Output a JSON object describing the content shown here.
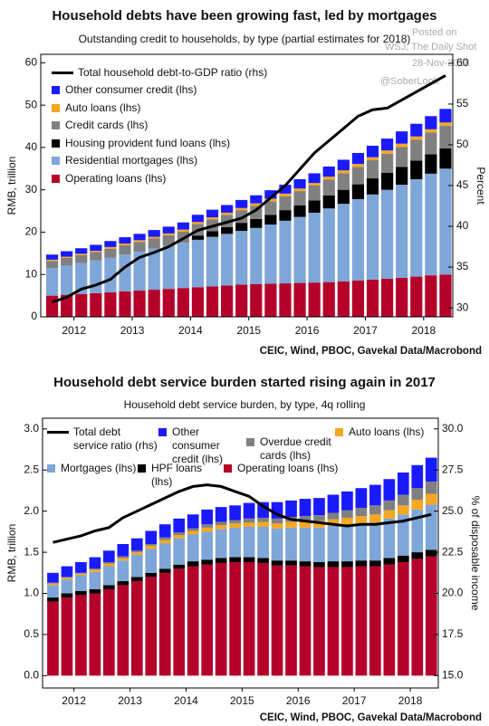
{
  "chart_data": [
    {
      "type": "bar",
      "stacked": true,
      "title": "Household debts have been growing fast, led by mortgages",
      "subtitle": "Outstanding credit to households, by type (partial estimates for 2018)",
      "ylabel": "RMB, trillion",
      "y2label": "Percent",
      "source": "CEIC, Wind, PBOC, Gavekal Data/Macrobond",
      "annotations": [
        "Posted on",
        "WSJ, The Daily Shot",
        "28-Nov-2018",
        "@SoberLook"
      ],
      "x": [
        2012.125,
        2012.375,
        2012.625,
        2012.875,
        2013.125,
        2013.375,
        2013.625,
        2013.875,
        2014.125,
        2014.375,
        2014.625,
        2014.875,
        2015.125,
        2015.375,
        2015.625,
        2015.875,
        2016.125,
        2016.375,
        2016.625,
        2016.875,
        2017.125,
        2017.375,
        2017.625,
        2017.875,
        2018.125,
        2018.375,
        2018.625,
        2018.875
      ],
      "xlim": [
        2011.93,
        2019.0
      ],
      "xticks": [
        {
          "value": 2012.5,
          "label": "2012"
        },
        {
          "value": 2013.5,
          "label": "2013"
        },
        {
          "value": 2014.5,
          "label": "2014"
        },
        {
          "value": 2015.5,
          "label": "2015"
        },
        {
          "value": 2016.5,
          "label": "2016"
        },
        {
          "value": 2017.5,
          "label": "2017"
        },
        {
          "value": 2018.5,
          "label": "2018"
        }
      ],
      "ylim": [
        0,
        62
      ],
      "yticks": [
        0,
        10,
        20,
        30,
        40,
        50,
        60
      ],
      "y2lim": [
        28.9,
        61.1
      ],
      "y2ticks": [
        30,
        35,
        40,
        45,
        50,
        55,
        60
      ],
      "series": [
        {
          "name": "Operating loans (lhs)",
          "color": "#b5002a",
          "values": [
            5.0,
            5.2,
            5.4,
            5.6,
            5.8,
            6.0,
            6.2,
            6.4,
            6.6,
            6.8,
            7.0,
            7.2,
            7.4,
            7.6,
            7.7,
            7.8,
            7.9,
            8.0,
            8.1,
            8.2,
            8.4,
            8.6,
            8.8,
            9.0,
            9.2,
            9.5,
            9.8,
            10.0
          ]
        },
        {
          "name": "Residential mortgages (lhs)",
          "color": "#7ea6d8",
          "values": [
            6.5,
            6.9,
            7.3,
            7.7,
            8.2,
            8.7,
            9.2,
            9.7,
            10.2,
            10.7,
            11.2,
            11.7,
            12.2,
            12.7,
            13.3,
            14.0,
            14.8,
            15.6,
            16.5,
            17.4,
            18.3,
            19.2,
            20.1,
            21.0,
            22.0,
            23.0,
            24.0,
            25.0
          ]
        },
        {
          "name": "Housing provident fund loans (lhs)",
          "color": "#000000",
          "values": [
            0,
            0,
            0,
            0,
            0,
            0,
            0,
            0,
            0,
            0,
            1.0,
            1.3,
            1.6,
            1.9,
            2.1,
            2.3,
            2.5,
            2.7,
            2.9,
            3.1,
            3.3,
            3.5,
            3.8,
            4.0,
            4.2,
            4.4,
            4.6,
            4.8
          ]
        },
        {
          "name": "Credit cards (lhs)",
          "color": "#808080",
          "values": [
            1.7,
            1.8,
            1.9,
            2.0,
            2.1,
            2.2,
            2.3,
            2.4,
            2.5,
            2.6,
            2.7,
            2.8,
            2.9,
            3.0,
            3.1,
            3.2,
            3.3,
            3.4,
            3.5,
            3.7,
            3.9,
            4.1,
            4.3,
            4.5,
            4.7,
            4.9,
            5.1,
            5.3
          ]
        },
        {
          "name": "Auto loans (lhs)",
          "color": "#f5a623",
          "values": [
            0.3,
            0.3,
            0.3,
            0.3,
            0.4,
            0.4,
            0.4,
            0.4,
            0.4,
            0.5,
            0.5,
            0.5,
            0.5,
            0.5,
            0.6,
            0.6,
            0.6,
            0.6,
            0.6,
            0.7,
            0.7,
            0.7,
            0.7,
            0.8,
            0.8,
            0.8,
            0.8,
            0.8
          ]
        },
        {
          "name": "Other consumer credit (lhs)",
          "color": "#1a1aff",
          "values": [
            1.2,
            1.3,
            1.3,
            1.4,
            1.4,
            1.5,
            1.5,
            1.6,
            1.6,
            1.7,
            1.7,
            1.8,
            1.8,
            1.9,
            1.9,
            2.0,
            2.1,
            2.2,
            2.3,
            2.4,
            2.5,
            2.6,
            2.7,
            2.8,
            2.9,
            3.0,
            3.1,
            3.2
          ]
        },
        {
          "name": "Total household debt-to-GDP ratio (rhs)",
          "color": "#000000",
          "type": "line",
          "axis": "y2",
          "values": [
            30.7,
            31.3,
            32.3,
            32.8,
            33.5,
            35.0,
            36.2,
            36.8,
            37.5,
            38.5,
            39.5,
            40.0,
            40.5,
            41.0,
            42.0,
            43.5,
            45.0,
            47.0,
            49.0,
            50.5,
            52.0,
            53.5,
            54.3,
            54.5,
            55.5,
            56.5,
            57.5,
            58.5
          ]
        }
      ]
    },
    {
      "type": "bar",
      "stacked": true,
      "title": "Household debt service burden started rising again in 2017",
      "subtitle": "Household debt service burden, by type, 4q rolling",
      "ylabel": "RMB, trillion",
      "y2label": "% of disposable income",
      "source": "CEIC, Wind, PBOC, Gavekal Data/Macrobond",
      "x": [
        2012.125,
        2012.375,
        2012.625,
        2012.875,
        2013.125,
        2013.375,
        2013.625,
        2013.875,
        2014.125,
        2014.375,
        2014.625,
        2014.875,
        2015.125,
        2015.375,
        2015.625,
        2015.875,
        2016.125,
        2016.375,
        2016.625,
        2016.875,
        2017.125,
        2017.375,
        2017.625,
        2017.875,
        2018.125,
        2018.375,
        2018.625,
        2018.875
      ],
      "xlim": [
        2011.94,
        2019.0
      ],
      "xticks": [
        {
          "value": 2012.5,
          "label": "2012"
        },
        {
          "value": 2013.5,
          "label": "2013"
        },
        {
          "value": 2014.5,
          "label": "2014"
        },
        {
          "value": 2015.5,
          "label": "2015"
        },
        {
          "value": 2016.5,
          "label": "2016"
        },
        {
          "value": 2017.5,
          "label": "2017"
        },
        {
          "value": 2018.5,
          "label": "2018"
        }
      ],
      "ylim": [
        -0.15,
        3.13
      ],
      "yticks": [
        {
          "value": 0,
          "label": "0.0"
        },
        0.5,
        {
          "value": 1,
          "label": "1.0"
        },
        1.5,
        {
          "value": 2,
          "label": "2.0"
        },
        2.5,
        {
          "value": 3,
          "label": "3.0"
        }
      ],
      "y2lim": [
        14.25,
        30.65
      ],
      "y2ticks": [
        {
          "value": 15,
          "label": "15.0"
        },
        17.5,
        {
          "value": 20,
          "label": "20.0"
        },
        22.5,
        {
          "value": 25,
          "label": "25.0"
        },
        27.5,
        {
          "value": 30,
          "label": "30.0"
        }
      ],
      "series": [
        {
          "name": "Operating loans (lhs)",
          "color": "#b5002a",
          "values": [
            0.9,
            0.95,
            0.98,
            1.0,
            1.05,
            1.1,
            1.15,
            1.2,
            1.25,
            1.3,
            1.33,
            1.35,
            1.37,
            1.38,
            1.38,
            1.37,
            1.34,
            1.34,
            1.33,
            1.32,
            1.32,
            1.32,
            1.33,
            1.33,
            1.35,
            1.38,
            1.42,
            1.45
          ]
        },
        {
          "name": "HPF loans (lhs)",
          "color": "#000000",
          "values": [
            0.05,
            0.05,
            0.05,
            0.05,
            0.05,
            0.05,
            0.05,
            0.05,
            0.05,
            0.05,
            0.06,
            0.06,
            0.06,
            0.06,
            0.06,
            0.06,
            0.06,
            0.06,
            0.06,
            0.06,
            0.07,
            0.07,
            0.07,
            0.07,
            0.08,
            0.08,
            0.08,
            0.08
          ]
        },
        {
          "name": "Mortgages (lhs)",
          "color": "#7ea6d8",
          "values": [
            0.15,
            0.17,
            0.19,
            0.21,
            0.23,
            0.25,
            0.27,
            0.29,
            0.31,
            0.32,
            0.33,
            0.34,
            0.35,
            0.36,
            0.37,
            0.38,
            0.39,
            0.4,
            0.41,
            0.42,
            0.43,
            0.44,
            0.45,
            0.46,
            0.48,
            0.5,
            0.52,
            0.55
          ]
        },
        {
          "name": "Auto loans (lhs)",
          "color": "#f5a623",
          "values": [
            0.02,
            0.02,
            0.02,
            0.03,
            0.03,
            0.03,
            0.03,
            0.04,
            0.04,
            0.04,
            0.04,
            0.05,
            0.05,
            0.05,
            0.05,
            0.06,
            0.06,
            0.07,
            0.07,
            0.08,
            0.08,
            0.09,
            0.09,
            0.1,
            0.1,
            0.11,
            0.12,
            0.13
          ]
        },
        {
          "name": "Overdue credit cards (lhs)",
          "color": "#808080",
          "values": [
            0.01,
            0.01,
            0.01,
            0.01,
            0.02,
            0.02,
            0.02,
            0.02,
            0.03,
            0.03,
            0.03,
            0.04,
            0.04,
            0.04,
            0.05,
            0.05,
            0.06,
            0.06,
            0.07,
            0.07,
            0.08,
            0.09,
            0.1,
            0.11,
            0.12,
            0.13,
            0.14,
            0.15
          ]
        },
        {
          "name": "Other consumer credit (lhs)",
          "color": "#1a1aff",
          "values": [
            0.12,
            0.13,
            0.13,
            0.14,
            0.14,
            0.15,
            0.15,
            0.16,
            0.16,
            0.17,
            0.17,
            0.18,
            0.18,
            0.18,
            0.19,
            0.19,
            0.2,
            0.2,
            0.21,
            0.21,
            0.22,
            0.23,
            0.24,
            0.25,
            0.26,
            0.27,
            0.28,
            0.29
          ]
        },
        {
          "name": "Total debt service ratio (rhs)",
          "color": "#000000",
          "type": "line",
          "axis": "y2",
          "values": [
            23.1,
            23.3,
            23.5,
            23.8,
            24.0,
            24.6,
            25.0,
            25.4,
            25.8,
            26.2,
            26.5,
            26.6,
            26.5,
            26.2,
            25.9,
            25.3,
            24.8,
            24.5,
            24.4,
            24.3,
            24.2,
            24.1,
            24.2,
            24.2,
            24.3,
            24.4,
            24.6,
            24.8
          ]
        }
      ]
    }
  ]
}
